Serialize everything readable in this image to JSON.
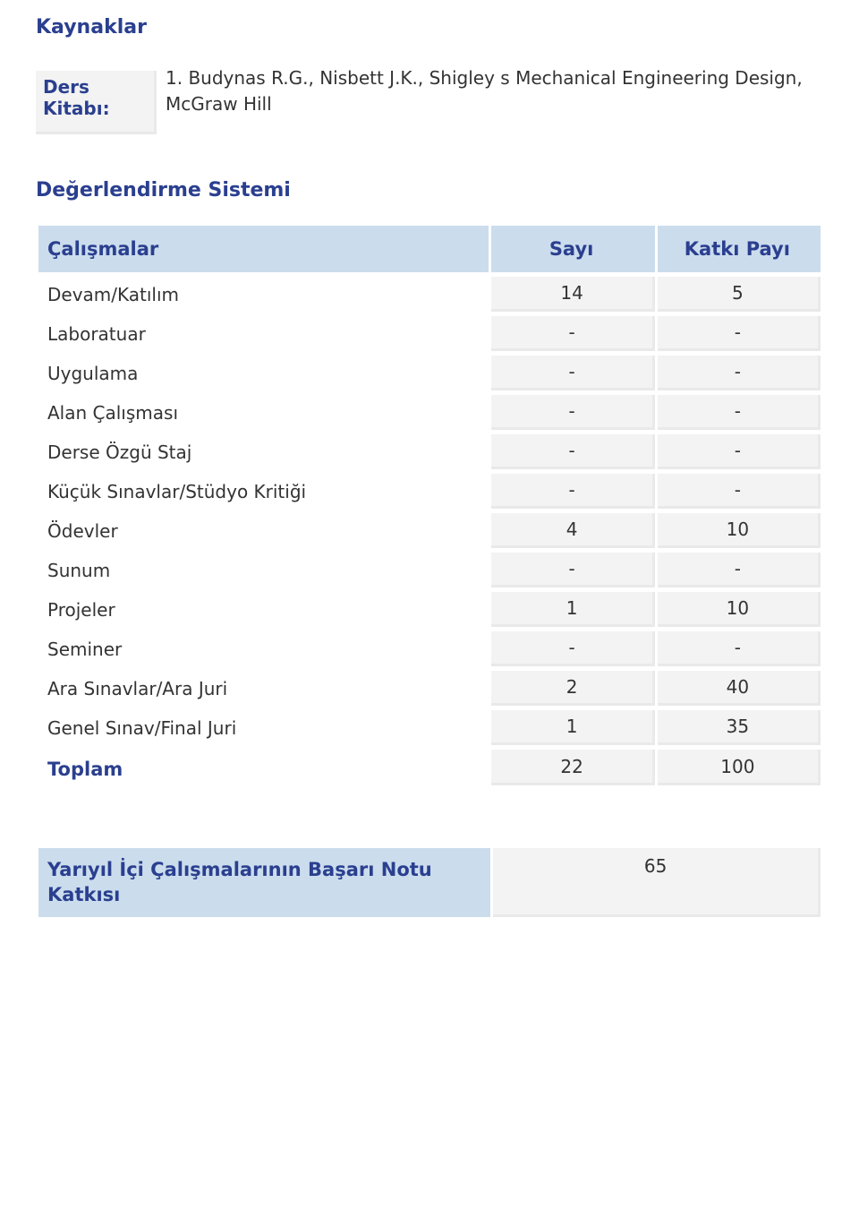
{
  "colors": {
    "heading": "#2a3f8f",
    "header_bg": "#cbdced",
    "cell_bg": "#f3f3f3",
    "cell_border": "#eae9e9",
    "text": "#333333",
    "page_bg": "#ffffff"
  },
  "fonts": {
    "title_size_pt": 16,
    "body_size_pt": 15,
    "family": "DejaVu Sans / Verdana"
  },
  "sections": {
    "resources": {
      "title": "Kaynaklar",
      "row_label": "Ders Kitabı:",
      "row_text": "1. Budynas R.G., Nisbett J.K., Shigley s Mechanical Engineering Design, McGraw Hill"
    },
    "evaluation": {
      "title": "Değerlendirme Sistemi",
      "columns": [
        "Çalışmalar",
        "Sayı",
        "Katkı Payı"
      ],
      "rows": [
        {
          "label": "Devam/Katılım",
          "count": "14",
          "weight": "5"
        },
        {
          "label": "Laboratuar",
          "count": "-",
          "weight": "-"
        },
        {
          "label": "Uygulama",
          "count": "-",
          "weight": "-"
        },
        {
          "label": "Alan Çalışması",
          "count": "-",
          "weight": "-"
        },
        {
          "label": "Derse Özgü Staj",
          "count": "-",
          "weight": "-"
        },
        {
          "label": "Küçük Sınavlar/Stüdyo Kritiği",
          "count": "-",
          "weight": "-"
        },
        {
          "label": "Ödevler",
          "count": "4",
          "weight": "10"
        },
        {
          "label": "Sunum",
          "count": "-",
          "weight": "-"
        },
        {
          "label": "Projeler",
          "count": "1",
          "weight": "10"
        },
        {
          "label": "Seminer",
          "count": "-",
          "weight": "-"
        },
        {
          "label": "Ara Sınavlar/Ara Juri",
          "count": "2",
          "weight": "40"
        },
        {
          "label": "Genel Sınav/Final Juri",
          "count": "1",
          "weight": "35"
        }
      ],
      "total": {
        "label": "Toplam",
        "count": "22",
        "weight": "100"
      }
    },
    "footer": {
      "label": "Yarıyıl İçi Çalışmalarının Başarı Notu Katkısı",
      "value": "65"
    }
  }
}
